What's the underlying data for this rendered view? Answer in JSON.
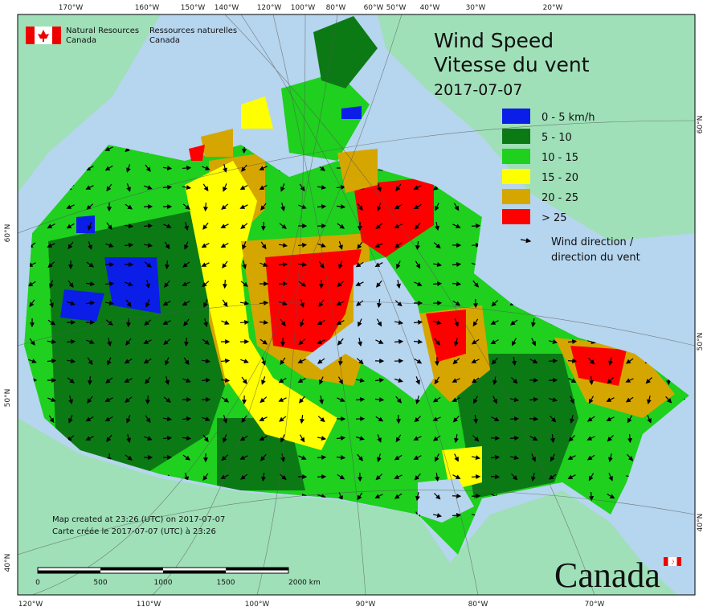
{
  "header": {
    "agency_en": [
      "Natural Resources",
      "Canada"
    ],
    "agency_fr": [
      "Ressources naturelles",
      "Canada"
    ]
  },
  "title": {
    "line1": "Wind Speed",
    "line2": "Vitesse du vent",
    "date": "2017-07-07"
  },
  "legend": {
    "items": [
      {
        "label": "0 - 5 km/h",
        "color": "#0a1ee8"
      },
      {
        "label": "5 - 10",
        "color": "#0b7a14"
      },
      {
        "label": "10 - 15",
        "color": "#1fd01f"
      },
      {
        "label": "15 - 20",
        "color": "#ffff00"
      },
      {
        "label": "20 - 25",
        "color": "#d6a600"
      },
      {
        "label": "> 25",
        "color": "#ff0000"
      }
    ],
    "direction": [
      "Wind direction /",
      "direction du vent"
    ]
  },
  "notes": [
    "Map created at 23:26 (UTC) on 2017-07-07",
    "Carte créée le 2017-07-07 (UTC) à 23:26"
  ],
  "scale_bar": [
    "0",
    "500",
    "1000",
    "1500",
    "2000 km"
  ],
  "graticule": {
    "top": [
      "170°W",
      "160°W",
      "150°W",
      "140°W",
      "120°W",
      "100°W",
      "80°W",
      "60°W",
      "50°W",
      "40°W",
      "30°W",
      "20°W"
    ],
    "bottom": [
      "120°W",
      "110°W",
      "100°W",
      "90°W",
      "80°W",
      "70°W"
    ],
    "left": [
      "60°N",
      "50°N",
      "40°N"
    ],
    "right": [
      "60°N",
      "50°N",
      "40°N"
    ]
  },
  "wordmark": "Canada"
}
